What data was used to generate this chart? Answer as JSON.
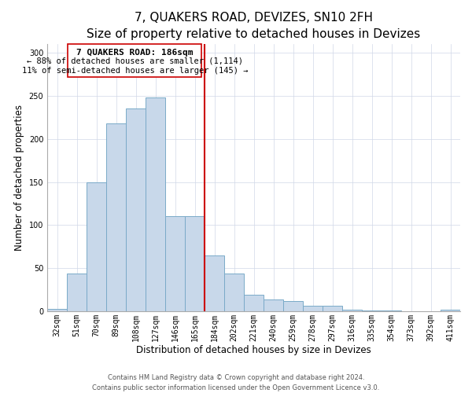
{
  "title": "7, QUAKERS ROAD, DEVIZES, SN10 2FH",
  "subtitle": "Size of property relative to detached houses in Devizes",
  "xlabel": "Distribution of detached houses by size in Devizes",
  "ylabel": "Number of detached properties",
  "bar_labels": [
    "32sqm",
    "51sqm",
    "70sqm",
    "89sqm",
    "108sqm",
    "127sqm",
    "146sqm",
    "165sqm",
    "184sqm",
    "202sqm",
    "221sqm",
    "240sqm",
    "259sqm",
    "278sqm",
    "297sqm",
    "316sqm",
    "335sqm",
    "354sqm",
    "373sqm",
    "392sqm",
    "411sqm"
  ],
  "bar_values": [
    3,
    44,
    150,
    218,
    235,
    248,
    110,
    110,
    65,
    44,
    19,
    14,
    12,
    6,
    6,
    2,
    1,
    1,
    0,
    0,
    2
  ],
  "bar_color": "#c8d8ea",
  "bar_edge_color": "#7aaac8",
  "reference_line_color": "#cc0000",
  "annotation_title": "7 QUAKERS ROAD: 186sqm",
  "annotation_line1": "← 88% of detached houses are smaller (1,114)",
  "annotation_line2": "11% of semi-detached houses are larger (145) →",
  "annotation_box_edge_color": "#cc0000",
  "ylim": [
    0,
    310
  ],
  "yticks": [
    0,
    50,
    100,
    150,
    200,
    250,
    300
  ],
  "footer_line1": "Contains HM Land Registry data © Crown copyright and database right 2024.",
  "footer_line2": "Contains public sector information licensed under the Open Government Licence v3.0.",
  "title_fontsize": 11,
  "subtitle_fontsize": 9.5,
  "xlabel_fontsize": 8.5,
  "ylabel_fontsize": 8.5,
  "tick_fontsize": 7,
  "footer_fontsize": 6,
  "annotation_fontsize": 8,
  "grid_color": "#d0d8e8"
}
